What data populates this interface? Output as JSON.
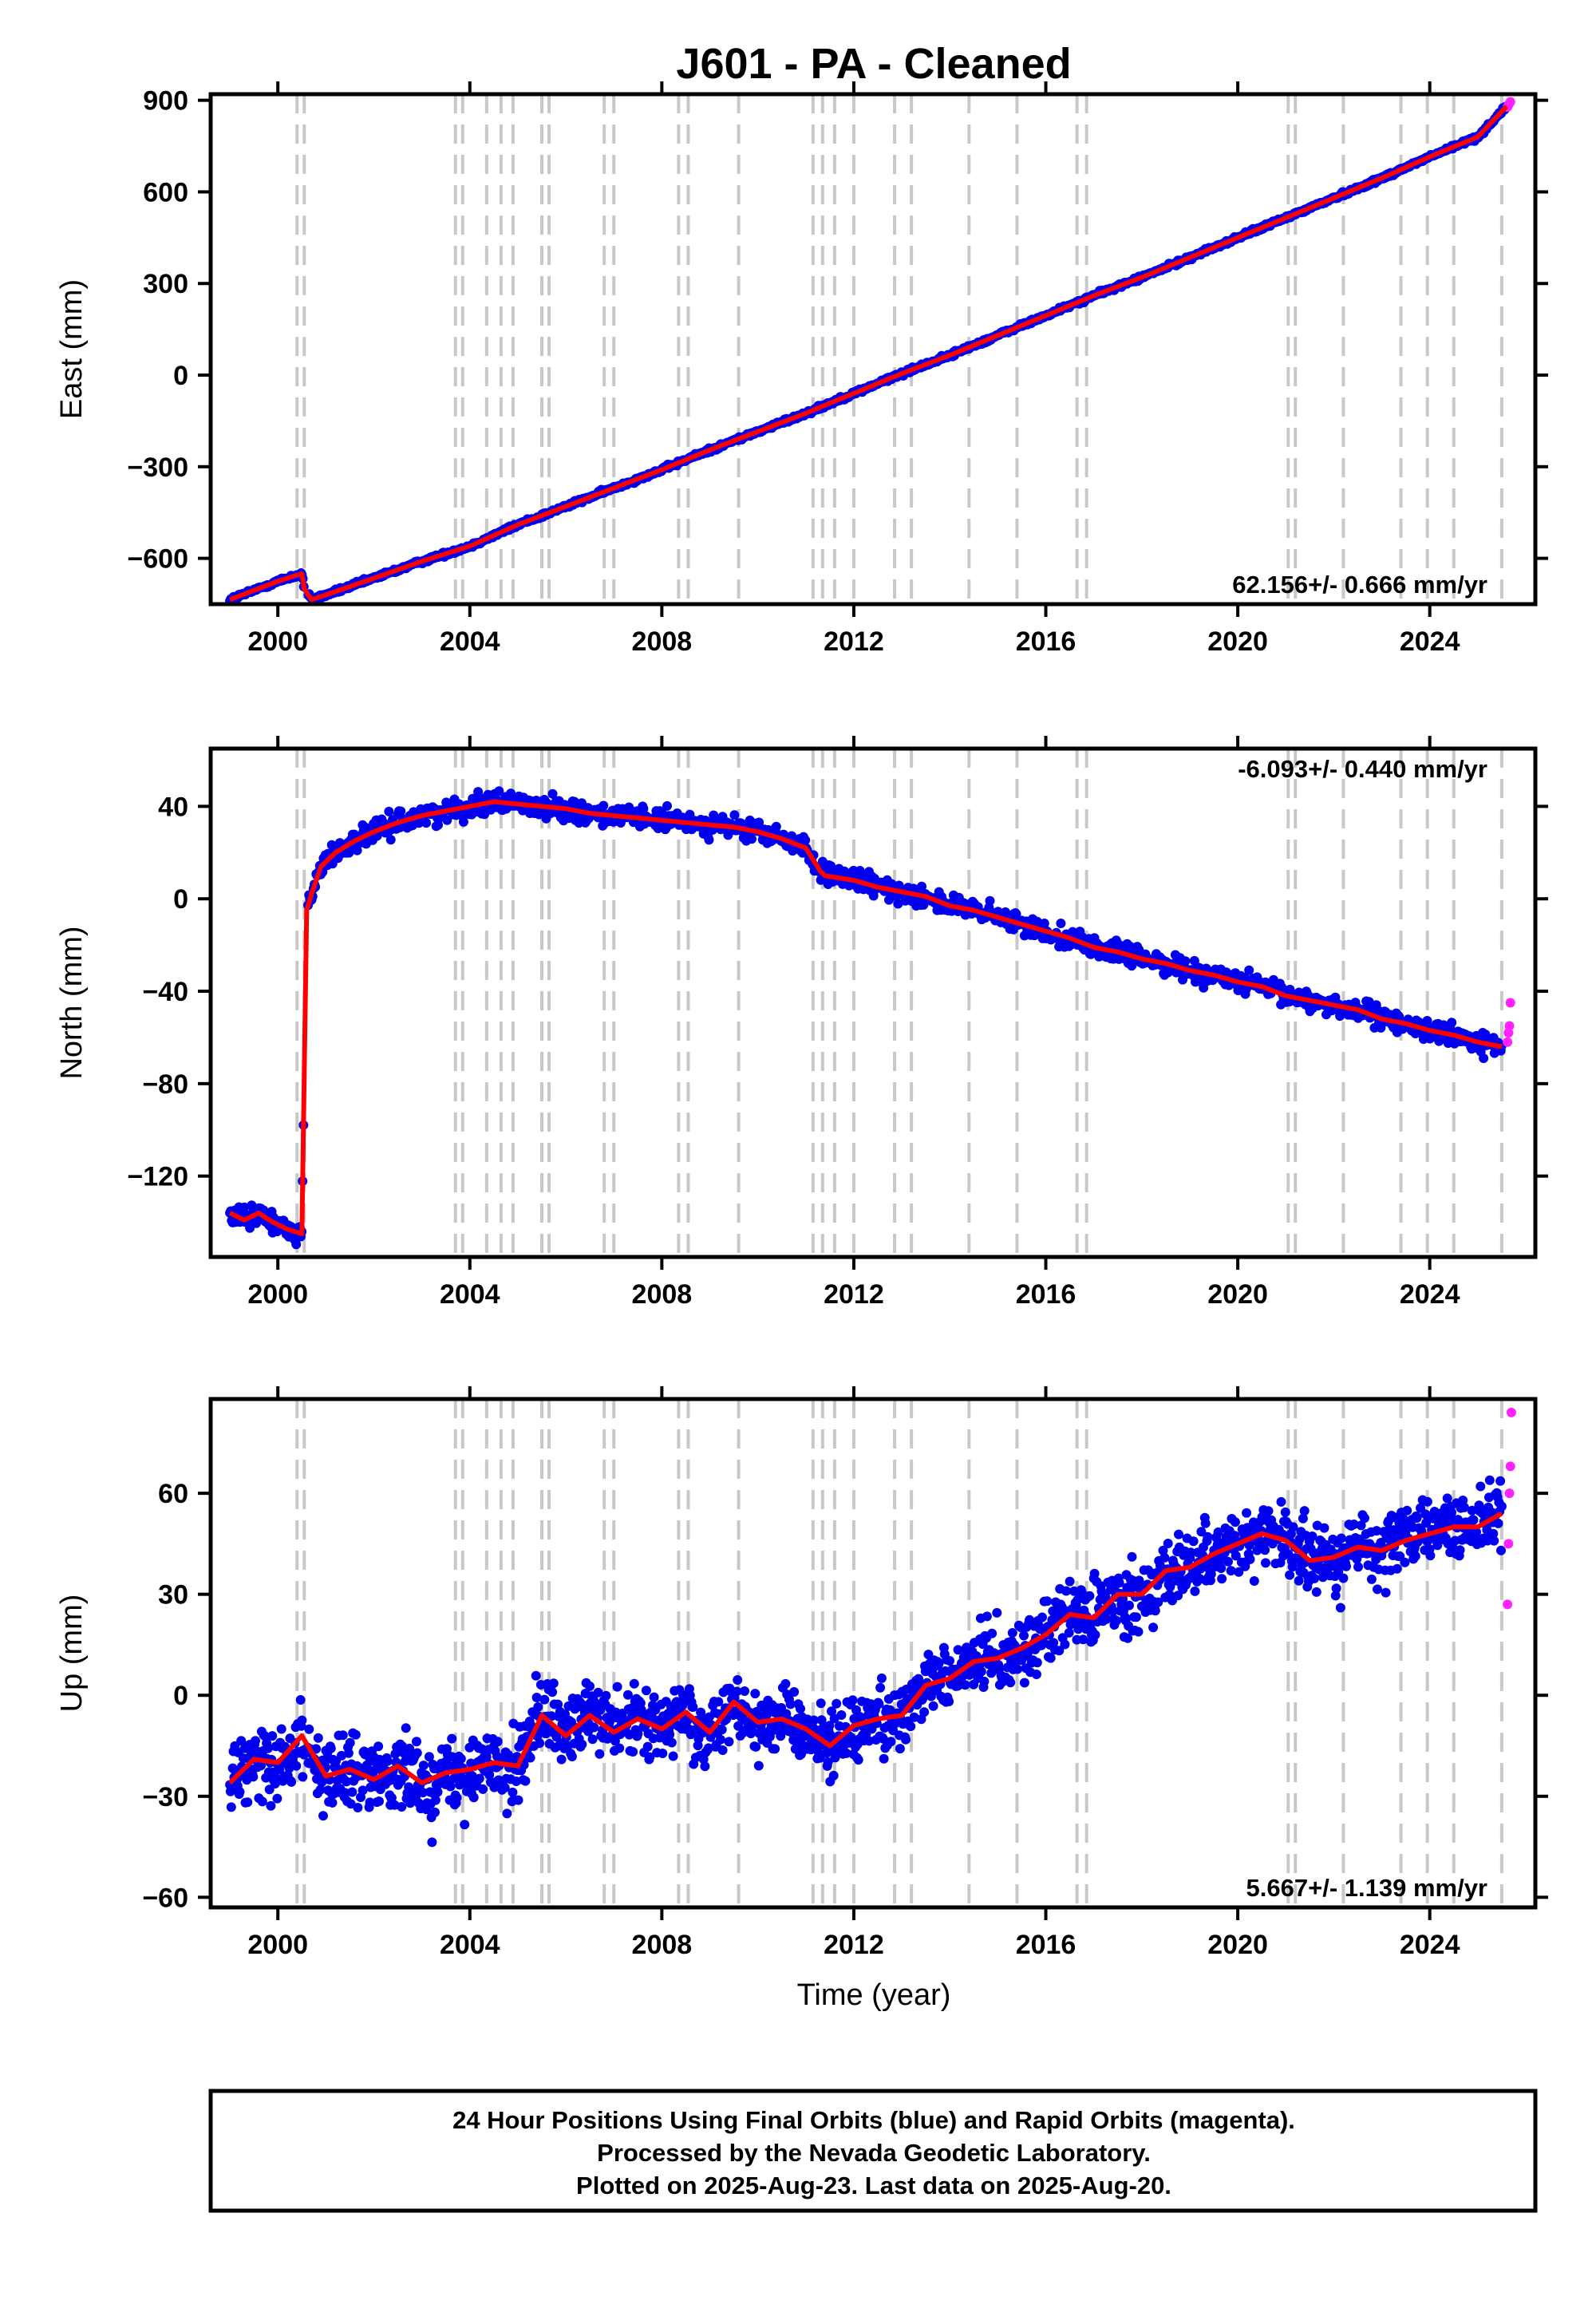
{
  "title": "J601  - PA - Cleaned",
  "xlabel": "Time (year)",
  "colors": {
    "final": "#0000ee",
    "rapid": "#ff22ff",
    "model": "#ff0000",
    "event_line": "#c8c8c8"
  },
  "footer": {
    "line1": "24 Hour Positions Using Final Orbits (blue) and Rapid Orbits (magenta).",
    "line2": "Processed by the Nevada Geodetic Laboratory.",
    "line3": "Plotted on 2025-Aug-23. Last data on 2025-Aug-20."
  },
  "chart_data": [
    {
      "type": "scatter",
      "component": "east",
      "ylabel": "East (mm)",
      "xlim": [
        1998.6,
        2026.2
      ],
      "ylim": [
        -750,
        920
      ],
      "yticks": [
        -600,
        -300,
        0,
        300,
        600,
        900
      ],
      "ytick_labels": [
        "−600",
        "−300",
        "0",
        "300",
        "600",
        "900"
      ],
      "xticks": [
        2000,
        2004,
        2008,
        2012,
        2016,
        2020,
        2024
      ],
      "xtick_labels": [
        "2000",
        "2004",
        "2008",
        "2012",
        "2016",
        "2020",
        "2024"
      ],
      "rate_label": "62.156+/- 0.666 mm/yr",
      "rate_position": "bottom-right",
      "series": [
        {
          "kind": "final_orbits",
          "x": [
            1999.0,
            1999.5,
            2000.0,
            2000.5,
            2000.55,
            2000.7,
            2001.0,
            2002.0,
            2003.0,
            2004.0,
            2005.0,
            2006.0,
            2007.0,
            2008.0,
            2009.0,
            2010.0,
            2011.0,
            2011.3,
            2012.0,
            2013.0,
            2014.0,
            2015.0,
            2016.0,
            2017.0,
            2018.0,
            2019.0,
            2020.0,
            2021.0,
            2022.0,
            2023.0,
            2024.0,
            2025.0,
            2025.6
          ],
          "y": [
            -735,
            -705,
            -675,
            -650,
            -700,
            -735,
            -720,
            -665,
            -610,
            -560,
            -490,
            -430,
            -370,
            -310,
            -245,
            -185,
            -125,
            -105,
            -60,
            5,
            65,
            130,
            195,
            260,
            320,
            385,
            450,
            515,
            580,
            645,
            715,
            780,
            880
          ]
        },
        {
          "kind": "rapid_orbits",
          "x": [
            2025.62,
            2025.64,
            2025.66,
            2025.68
          ],
          "y": [
            878,
            885,
            890,
            895
          ]
        },
        {
          "kind": "model",
          "x": [
            1999.0,
            1999.5,
            2000.0,
            2000.5,
            2000.55,
            2000.7,
            2001.0,
            2002.0,
            2003.0,
            2004.0,
            2005.0,
            2006.0,
            2007.0,
            2008.0,
            2009.0,
            2010.0,
            2011.0,
            2011.3,
            2012.0,
            2013.0,
            2014.0,
            2015.0,
            2016.0,
            2017.0,
            2018.0,
            2019.0,
            2020.0,
            2021.0,
            2022.0,
            2023.0,
            2024.0,
            2025.0,
            2025.6
          ],
          "y": [
            -735,
            -705,
            -675,
            -650,
            -700,
            -735,
            -720,
            -665,
            -610,
            -560,
            -490,
            -430,
            -370,
            -310,
            -245,
            -185,
            -125,
            -105,
            -60,
            5,
            65,
            130,
            195,
            260,
            320,
            385,
            450,
            515,
            580,
            645,
            715,
            780,
            880
          ]
        }
      ]
    },
    {
      "type": "scatter",
      "component": "north",
      "ylabel": "North (mm)",
      "xlim": [
        1998.6,
        2026.2
      ],
      "ylim": [
        -155,
        65
      ],
      "yticks": [
        -120,
        -80,
        -40,
        0,
        40
      ],
      "ytick_labels": [
        "−120",
        "−80",
        "−40",
        "0",
        "40"
      ],
      "xticks": [
        2000,
        2004,
        2008,
        2012,
        2016,
        2020,
        2024
      ],
      "xtick_labels": [
        "2000",
        "2004",
        "2008",
        "2012",
        "2016",
        "2020",
        "2024"
      ],
      "rate_label": "-6.093+/- 0.440 mm/yr",
      "rate_position": "top-right",
      "series": [
        {
          "kind": "final_orbits",
          "x": [
            1999.0,
            1999.3,
            1999.6,
            1999.9,
            2000.2,
            2000.5,
            2000.6,
            2000.7,
            2000.9,
            2001.2,
            2001.6,
            2002.0,
            2002.5,
            2003.0,
            2003.5,
            2004.0,
            2004.5,
            2005.0,
            2005.5,
            2006.0,
            2006.5,
            2007.0,
            2007.5,
            2008.0,
            2008.5,
            2009.0,
            2009.5,
            2010.0,
            2010.5,
            2011.0,
            2011.3,
            2011.4,
            2012.0,
            2012.5,
            2013.0,
            2013.5,
            2014.0,
            2014.5,
            2015.0,
            2015.5,
            2016.0,
            2016.5,
            2017.0,
            2017.5,
            2018.0,
            2018.5,
            2019.0,
            2019.5,
            2020.0,
            2020.5,
            2021.0,
            2021.5,
            2022.0,
            2022.5,
            2023.0,
            2023.5,
            2024.0,
            2024.5,
            2025.0,
            2025.5
          ],
          "y": [
            -136,
            -139,
            -136,
            -140,
            -143,
            -145,
            -5,
            2,
            14,
            20,
            25,
            29,
            33,
            36,
            38,
            40,
            42,
            41,
            40,
            39,
            37,
            36,
            35,
            34,
            33,
            32,
            31,
            29,
            26,
            22,
            12,
            10,
            8,
            5,
            3,
            1,
            -3,
            -5,
            -8,
            -11,
            -14,
            -17,
            -21,
            -23,
            -26,
            -28,
            -31,
            -33,
            -36,
            -38,
            -42,
            -44,
            -46,
            -48,
            -52,
            -54,
            -57,
            -59,
            -62,
            -64
          ]
        },
        {
          "kind": "rapid_orbits",
          "x": [
            2025.62,
            2025.64,
            2025.66,
            2025.68
          ],
          "y": [
            -62,
            -58,
            -55,
            -45
          ]
        },
        {
          "kind": "model",
          "x": [
            1999.0,
            1999.3,
            1999.6,
            1999.9,
            2000.2,
            2000.5,
            2000.6,
            2000.7,
            2000.9,
            2001.2,
            2001.6,
            2002.0,
            2002.5,
            2003.0,
            2003.5,
            2004.0,
            2004.5,
            2005.0,
            2005.5,
            2006.0,
            2006.5,
            2007.0,
            2007.5,
            2008.0,
            2008.5,
            2009.0,
            2009.5,
            2010.0,
            2010.5,
            2011.0,
            2011.3,
            2011.4,
            2012.0,
            2012.5,
            2013.0,
            2013.5,
            2014.0,
            2014.5,
            2015.0,
            2015.5,
            2016.0,
            2016.5,
            2017.0,
            2017.5,
            2018.0,
            2018.5,
            2019.0,
            2019.5,
            2020.0,
            2020.5,
            2021.0,
            2021.5,
            2022.0,
            2022.5,
            2023.0,
            2023.5,
            2024.0,
            2024.5,
            2025.0,
            2025.5
          ],
          "y": [
            -136,
            -139,
            -136,
            -140,
            -143,
            -145,
            -5,
            2,
            14,
            20,
            25,
            29,
            33,
            36,
            38,
            40,
            42,
            41,
            40,
            39,
            37,
            36,
            35,
            34,
            33,
            32,
            31,
            29,
            26,
            22,
            12,
            10,
            8,
            5,
            3,
            1,
            -3,
            -5,
            -8,
            -11,
            -14,
            -17,
            -21,
            -23,
            -26,
            -28,
            -31,
            -33,
            -36,
            -38,
            -42,
            -44,
            -46,
            -48,
            -52,
            -54,
            -57,
            -59,
            -62,
            -64
          ]
        }
      ]
    },
    {
      "type": "scatter",
      "component": "up",
      "ylabel": "Up (mm)",
      "xlim": [
        1998.6,
        2026.2
      ],
      "ylim": [
        -63,
        88
      ],
      "yticks": [
        -60,
        -30,
        0,
        30,
        60
      ],
      "ytick_labels": [
        "−60",
        "−30",
        "0",
        "30",
        "60"
      ],
      "xticks": [
        2000,
        2004,
        2008,
        2012,
        2016,
        2020,
        2024
      ],
      "xtick_labels": [
        "2000",
        "2004",
        "2008",
        "2012",
        "2016",
        "2020",
        "2024"
      ],
      "rate_label": "5.667+/- 1.139 mm/yr",
      "rate_position": "bottom-right",
      "series": [
        {
          "kind": "final_orbits",
          "x": [
            1999.0,
            1999.5,
            2000.0,
            2000.5,
            2001.0,
            2001.5,
            2002.0,
            2002.5,
            2003.0,
            2003.5,
            2004.0,
            2004.5,
            2005.0,
            2005.5,
            2006.0,
            2006.5,
            2007.0,
            2007.5,
            2008.0,
            2008.5,
            2009.0,
            2009.5,
            2010.0,
            2010.5,
            2011.0,
            2011.5,
            2012.0,
            2012.5,
            2013.0,
            2013.5,
            2014.0,
            2014.5,
            2015.0,
            2015.5,
            2016.0,
            2016.5,
            2017.0,
            2017.5,
            2018.0,
            2018.5,
            2019.0,
            2019.5,
            2020.0,
            2020.5,
            2021.0,
            2021.5,
            2022.0,
            2022.5,
            2023.0,
            2023.5,
            2024.0,
            2024.5,
            2025.0,
            2025.5
          ],
          "y": [
            -26,
            -19,
            -20,
            -12,
            -24,
            -22,
            -25,
            -21,
            -26,
            -23,
            -22,
            -20,
            -21,
            -6,
            -12,
            -6,
            -11,
            -7,
            -10,
            -5,
            -11,
            -2,
            -8,
            -7,
            -10,
            -15,
            -9,
            -7,
            -6,
            3,
            5,
            10,
            11,
            14,
            18,
            24,
            23,
            30,
            30,
            37,
            38,
            42,
            45,
            48,
            46,
            40,
            41,
            44,
            43,
            46,
            48,
            50,
            50,
            54
          ]
        },
        {
          "kind": "rapid_orbits",
          "x": [
            2025.62,
            2025.64,
            2025.66,
            2025.68,
            2025.7
          ],
          "y": [
            27,
            45,
            60,
            68,
            84
          ]
        },
        {
          "kind": "model",
          "x": [
            1999.0,
            1999.5,
            2000.0,
            2000.5,
            2001.0,
            2001.5,
            2002.0,
            2002.5,
            2003.0,
            2003.5,
            2004.0,
            2004.5,
            2005.0,
            2005.5,
            2006.0,
            2006.5,
            2007.0,
            2007.5,
            2008.0,
            2008.5,
            2009.0,
            2009.5,
            2010.0,
            2010.5,
            2011.0,
            2011.5,
            2012.0,
            2012.5,
            2013.0,
            2013.5,
            2014.0,
            2014.5,
            2015.0,
            2015.5,
            2016.0,
            2016.5,
            2017.0,
            2017.5,
            2018.0,
            2018.5,
            2019.0,
            2019.5,
            2020.0,
            2020.5,
            2021.0,
            2021.5,
            2022.0,
            2022.5,
            2023.0,
            2023.5,
            2024.0,
            2024.5,
            2025.0,
            2025.5
          ],
          "y": [
            -26,
            -19,
            -20,
            -12,
            -24,
            -22,
            -25,
            -21,
            -26,
            -23,
            -22,
            -20,
            -21,
            -6,
            -12,
            -6,
            -11,
            -7,
            -10,
            -5,
            -11,
            -2,
            -8,
            -7,
            -10,
            -15,
            -9,
            -7,
            -6,
            3,
            5,
            10,
            11,
            14,
            18,
            24,
            23,
            30,
            30,
            37,
            38,
            42,
            45,
            48,
            46,
            40,
            41,
            44,
            43,
            46,
            48,
            50,
            50,
            54
          ]
        }
      ]
    }
  ],
  "event_lines": [
    2000.4,
    2000.55,
    2003.7,
    2003.85,
    2004.35,
    2004.65,
    2004.9,
    2005.5,
    2005.65,
    2006.8,
    2007.0,
    2008.35,
    2008.55,
    2009.6,
    2011.15,
    2011.35,
    2011.6,
    2012.0,
    2012.85,
    2013.2,
    2014.4,
    2015.4,
    2016.65,
    2016.85,
    2021.05,
    2021.2,
    2022.2,
    2023.4,
    2023.95,
    2024.5,
    2025.5
  ]
}
